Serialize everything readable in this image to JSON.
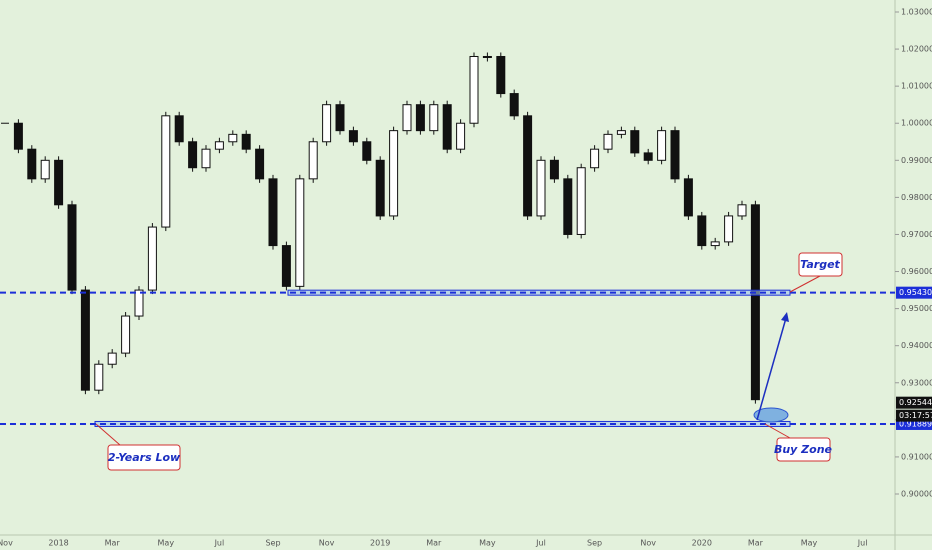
{
  "chart_data": {
    "type": "candlestick",
    "categories": [
      "Nov",
      null,
      null,
      null,
      "2018",
      null,
      null,
      null,
      "Mar",
      null,
      null,
      null,
      "May",
      null,
      null,
      null,
      "Jul",
      null,
      null,
      null,
      "Sep",
      null,
      null,
      null,
      "Nov",
      null,
      null,
      null,
      "2019",
      null,
      null,
      null,
      "Mar",
      null,
      null,
      null,
      "May",
      null,
      null,
      null,
      "Jul",
      null,
      null,
      null,
      "Sep",
      null,
      null,
      null,
      "Nov",
      null,
      null,
      null,
      "2020",
      null,
      null,
      null,
      "Mar",
      null,
      null,
      null,
      "May",
      null,
      null,
      null,
      "Jul",
      null,
      null
    ],
    "values": [
      1.0,
      0.993,
      0.985,
      0.99,
      0.978,
      0.955,
      0.928,
      0.935,
      0.938,
      0.948,
      0.955,
      0.972,
      1.002,
      0.995,
      0.988,
      0.993,
      0.995,
      0.997,
      0.993,
      0.985,
      0.967,
      0.956,
      0.985,
      0.995,
      1.005,
      0.998,
      0.995,
      0.99,
      0.975,
      0.998,
      1.005,
      0.998,
      1.005,
      0.993,
      1.0,
      1.018,
      1.018,
      1.008,
      1.002,
      0.975,
      0.99,
      0.985,
      0.97,
      0.988,
      0.993,
      0.997,
      0.998,
      0.992,
      0.99,
      0.998,
      0.985,
      0.975,
      0.967,
      0.968,
      0.975,
      0.978,
      0.92544,
      null,
      null,
      null,
      null,
      null,
      null,
      null,
      null,
      null,
      null
    ],
    "color": "#111111",
    "ylim": [
      0.9,
      1.03
    ],
    "yticks": [
      {
        "value": 0.9,
        "label": "0.90000"
      },
      {
        "value": 0.91,
        "label": "0.91000"
      },
      {
        "value": 0.92,
        "label": "0.92000"
      },
      {
        "value": 0.93,
        "label": "0.93000"
      },
      {
        "value": 0.94,
        "label": "0.94000"
      },
      {
        "value": 0.95,
        "label": "0.95000"
      },
      {
        "value": 0.96,
        "label": "0.96000"
      },
      {
        "value": 0.97,
        "label": "0.97000"
      },
      {
        "value": 0.98,
        "label": "0.98000"
      },
      {
        "value": 0.99,
        "label": "0.99000"
      },
      {
        "value": 1.0,
        "label": "1.00000"
      },
      {
        "value": 1.01,
        "label": "1.01000"
      },
      {
        "value": 1.02,
        "label": "1.02000"
      },
      {
        "value": 1.03,
        "label": "1.03000"
      }
    ],
    "levels": [
      {
        "value": 0.9543,
        "label": "0.95430",
        "color": "#1c2fd8"
      },
      {
        "value": 0.91889,
        "label": "0.91889",
        "color": "#1c2fd8"
      }
    ],
    "last_price": {
      "value": 0.92544,
      "label": "0.92544"
    },
    "countdown": "03:17:57",
    "annotations": [
      "Target",
      "2-Years Low",
      "Buy Zone"
    ]
  }
}
